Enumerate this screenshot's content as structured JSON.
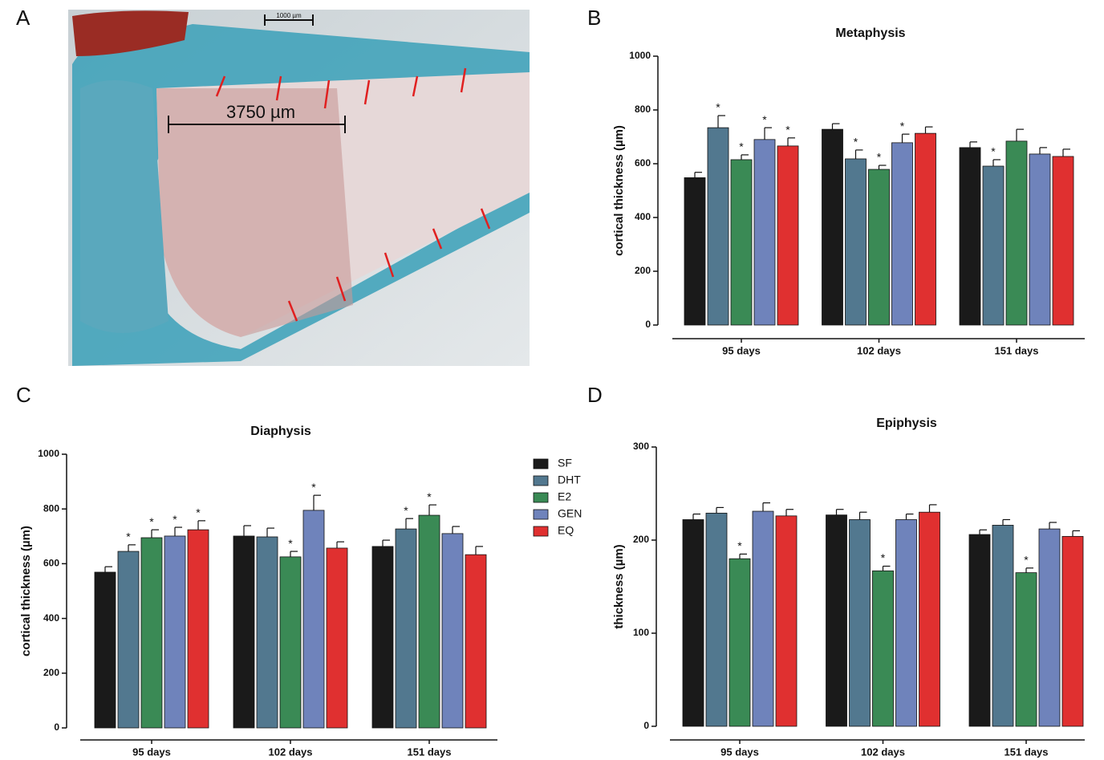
{
  "figure": {
    "panel_labels": [
      "A",
      "B",
      "C",
      "D"
    ],
    "image": {
      "scale_bar": "1000 µm",
      "measurement": "3750 µm"
    }
  },
  "chart_data": [
    {
      "type": "bar",
      "title": "Metaphysis",
      "y_label": "cortical thickness  (µm)",
      "significance_marker": "*",
      "categories": [
        "95 days",
        "102 days",
        "151 days"
      ],
      "ylim": [
        0,
        1000
      ],
      "yticks": [
        0,
        200,
        400,
        600,
        800,
        1000
      ],
      "series": [
        {
          "name": "SF",
          "color": "#1a1a1a",
          "values": [
            548,
            728,
            660
          ],
          "errors": [
            20,
            21,
            21
          ],
          "significant": [
            false,
            false,
            false
          ]
        },
        {
          "name": "DHT",
          "color": "#52788f",
          "values": [
            734,
            618,
            591
          ],
          "errors": [
            45,
            33,
            24
          ],
          "significant": [
            true,
            true,
            true
          ]
        },
        {
          "name": "E2",
          "color": "#3a8a55",
          "values": [
            615,
            579,
            684
          ],
          "errors": [
            18,
            15,
            44
          ],
          "significant": [
            true,
            true,
            false
          ]
        },
        {
          "name": "GEN",
          "color": "#6f83bb",
          "values": [
            690,
            678,
            636
          ],
          "errors": [
            44,
            32,
            24
          ],
          "significant": [
            true,
            true,
            false
          ]
        },
        {
          "name": "EQ",
          "color": "#e03030",
          "values": [
            666,
            713,
            627
          ],
          "errors": [
            30,
            24,
            27
          ],
          "significant": [
            true,
            false,
            false
          ]
        }
      ]
    },
    {
      "type": "bar",
      "title": "Diaphysis",
      "y_label": "cortical thickness  (µm)",
      "significance_marker": "*",
      "legend": "right",
      "categories": [
        "95 days",
        "102 days",
        "151 days"
      ],
      "ylim": [
        0,
        1000
      ],
      "yticks": [
        0,
        200,
        400,
        600,
        800,
        1000
      ],
      "series": [
        {
          "name": "SF",
          "color": "#1a1a1a",
          "values": [
            569,
            701,
            663
          ],
          "errors": [
            20,
            38,
            23
          ],
          "significant": [
            false,
            false,
            false
          ]
        },
        {
          "name": "DHT",
          "color": "#52788f",
          "values": [
            645,
            698,
            727
          ],
          "errors": [
            24,
            32,
            38
          ],
          "significant": [
            true,
            false,
            true
          ]
        },
        {
          "name": "E2",
          "color": "#3a8a55",
          "values": [
            695,
            625,
            777
          ],
          "errors": [
            29,
            20,
            38
          ],
          "significant": [
            true,
            true,
            true
          ]
        },
        {
          "name": "GEN",
          "color": "#6f83bb",
          "values": [
            701,
            795,
            710
          ],
          "errors": [
            32,
            55,
            26
          ],
          "significant": [
            true,
            true,
            false
          ]
        },
        {
          "name": "EQ",
          "color": "#e03030",
          "values": [
            724,
            657,
            633
          ],
          "errors": [
            33,
            23,
            30
          ],
          "significant": [
            true,
            false,
            false
          ]
        }
      ]
    },
    {
      "type": "bar",
      "title": "Epiphysis",
      "y_label": "thickness (µm)",
      "significance_marker": "*",
      "categories": [
        "95 days",
        "102 days",
        "151 days"
      ],
      "ylim": [
        0,
        300
      ],
      "yticks": [
        0,
        100,
        200,
        300
      ],
      "series": [
        {
          "name": "SF",
          "color": "#1a1a1a",
          "values": [
            222,
            227,
            206
          ],
          "errors": [
            6,
            6,
            5
          ],
          "significant": [
            false,
            false,
            false
          ]
        },
        {
          "name": "DHT",
          "color": "#52788f",
          "values": [
            229,
            222,
            216
          ],
          "errors": [
            6,
            8,
            6
          ],
          "significant": [
            false,
            false,
            false
          ]
        },
        {
          "name": "E2",
          "color": "#3a8a55",
          "values": [
            180,
            167,
            165
          ],
          "errors": [
            5,
            5,
            5
          ],
          "significant": [
            true,
            true,
            true
          ]
        },
        {
          "name": "GEN",
          "color": "#6f83bb",
          "values": [
            231,
            222,
            212
          ],
          "errors": [
            9,
            6,
            7
          ],
          "significant": [
            false,
            false,
            false
          ]
        },
        {
          "name": "EQ",
          "color": "#e03030",
          "values": [
            226,
            230,
            204
          ],
          "errors": [
            7,
            8,
            6
          ],
          "significant": [
            false,
            false,
            false
          ]
        }
      ]
    }
  ]
}
